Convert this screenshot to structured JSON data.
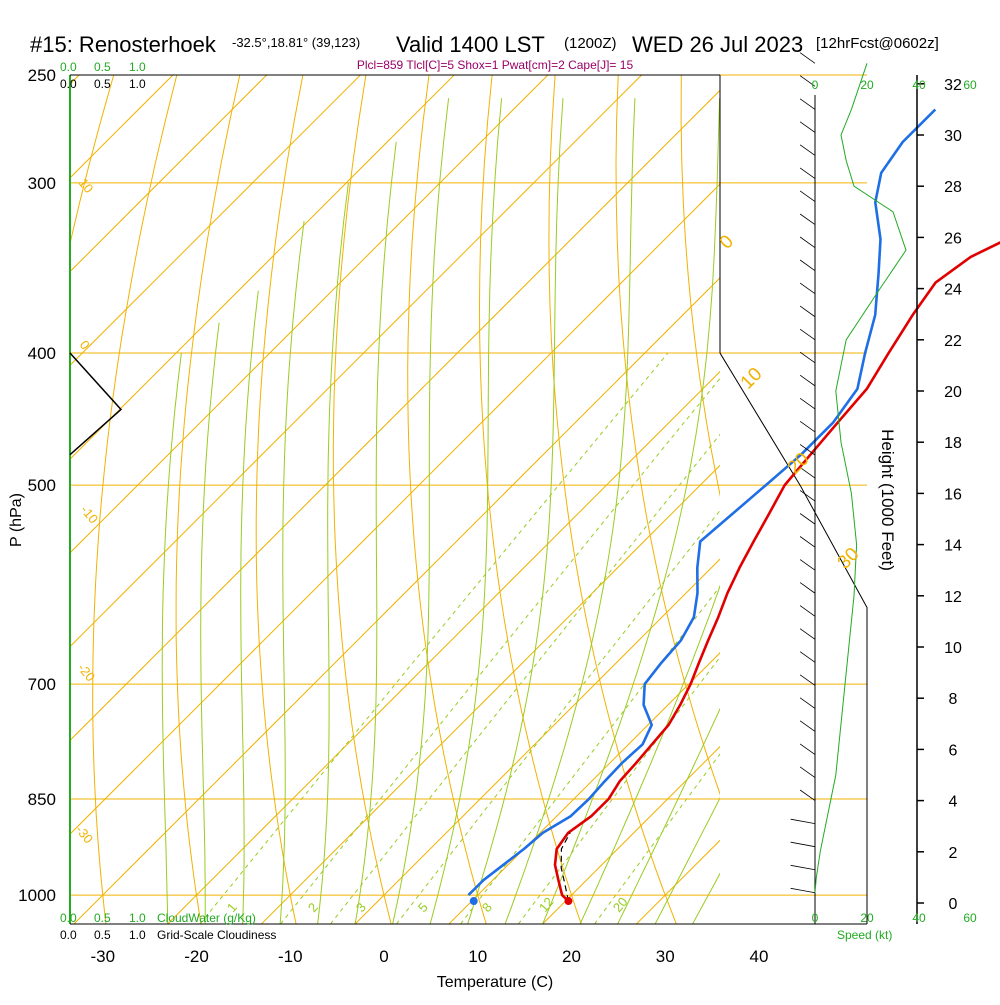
{
  "header": {
    "station": "#15: Renosterhoek",
    "coords": "-32.5°,18.81° (39,123)",
    "valid": "Valid 1400 LST",
    "zulu": "(1200Z)",
    "date": "WED 26 Jul 2023",
    "forecast": "[12hrFcst@0602z]",
    "indices": "Plcl=859 Tlcl[C]=5 Shox=1 Pwat[cm]=2 Cape[J]= 15"
  },
  "colors": {
    "temperature": "#e00000",
    "dewpoint": "#1e6ee6",
    "isobar": "#f2b200",
    "dry_adiabat": "#f2b200",
    "moist_adiabat": "#99cc22",
    "mixing_ratio": "#99cc22",
    "green_text": "#22aa22",
    "indices_text": "#990066"
  },
  "axes": {
    "xlabel": "Temperature (C)",
    "ylabel": "P (hPa)",
    "right_label": "Height (1000 Feet)",
    "x_ticks": [
      "-30",
      "-20",
      "-10",
      "0",
      "10",
      "20",
      "30",
      "40"
    ],
    "p_ticks": [
      "250",
      "300",
      "400",
      "500",
      "700",
      "850",
      "1000"
    ],
    "height_ticks": [
      "0",
      "2",
      "4",
      "6",
      "8",
      "10",
      "12",
      "14",
      "16",
      "18",
      "20",
      "22",
      "24",
      "26",
      "28",
      "30",
      "32"
    ]
  },
  "side_scales": {
    "cloud_top_green": [
      "0.0",
      "0.5",
      "1.0"
    ],
    "cloud_top_black": [
      "0.0",
      "0.5",
      "1.0"
    ],
    "cloud_bottom_green": [
      "0.0",
      "0.5",
      "1.0"
    ],
    "cloud_bottom_black": [
      "0.0",
      "0.5",
      "1.0"
    ],
    "cloudwater_label": "CloudWater (g/Kg)",
    "cloudiness_label": "Grid-Scale Cloudiness",
    "speed_ticks": [
      "0",
      "20",
      "40",
      "60"
    ],
    "speed_label": "Speed (kt)"
  },
  "labels": {
    "dry_adiabat_left": [
      "10",
      "0",
      "-10",
      "-20",
      "-30"
    ],
    "dry_adiabat_right": [
      "0",
      "10",
      "20",
      "30"
    ],
    "mixing_ratio": [
      "1",
      "2",
      "3",
      "5",
      "8",
      "12",
      "20"
    ]
  },
  "chart_data": {
    "type": "line",
    "title": "#15: Renosterhoek Valid 1400 LST (1200Z) WED 26 Jul 2023",
    "xlabel": "Temperature (C)",
    "ylabel": "P (hPa)",
    "xlim": [
      -35,
      44
    ],
    "ylim": [
      1050,
      250
    ],
    "yscale": "log",
    "series": [
      {
        "key": "temperature",
        "points": [
          [
            20.3,
            1010
          ],
          [
            19,
            1000
          ],
          [
            17,
            975
          ],
          [
            15,
            950
          ],
          [
            13.5,
            925
          ],
          [
            13,
            900
          ],
          [
            13.7,
            875
          ],
          [
            13.7,
            850
          ],
          [
            13,
            825
          ],
          [
            12.8,
            800
          ],
          [
            12.5,
            775
          ],
          [
            12.2,
            750
          ],
          [
            11.3,
            725
          ],
          [
            10.2,
            700
          ],
          [
            8.8,
            675
          ],
          [
            7.4,
            650
          ],
          [
            6,
            625
          ],
          [
            4.4,
            600
          ],
          [
            3,
            575
          ],
          [
            1.7,
            550
          ],
          [
            0.4,
            525
          ],
          [
            -1,
            500
          ],
          [
            -1.5,
            475
          ],
          [
            -2,
            450
          ],
          [
            -2.5,
            425
          ],
          [
            -4,
            400
          ],
          [
            -5.5,
            375
          ],
          [
            -6.5,
            355
          ],
          [
            -5.5,
            340
          ],
          [
            -2.5,
            325
          ],
          [
            -1,
            300
          ],
          [
            0.5,
            275
          ],
          [
            2,
            265
          ]
        ]
      },
      {
        "key": "dewpoint",
        "points": [
          [
            9,
            1000
          ],
          [
            9,
            975
          ],
          [
            9.5,
            950
          ],
          [
            10,
            925
          ],
          [
            10.3,
            900
          ],
          [
            11.5,
            875
          ],
          [
            11.6,
            850
          ],
          [
            11.4,
            825
          ],
          [
            11.3,
            800
          ],
          [
            11.5,
            775
          ],
          [
            10.4,
            750
          ],
          [
            7.4,
            725
          ],
          [
            5.3,
            700
          ],
          [
            4.8,
            675
          ],
          [
            4.5,
            650
          ],
          [
            3.4,
            625
          ],
          [
            1.2,
            600
          ],
          [
            -1.5,
            575
          ],
          [
            -4,
            550
          ],
          [
            -3.5,
            525
          ],
          [
            -3,
            500
          ],
          [
            -2.5,
            475
          ],
          [
            -2.5,
            450
          ],
          [
            -3.5,
            425
          ],
          [
            -6.5,
            400
          ],
          [
            -9.5,
            375
          ],
          [
            -13.5,
            350
          ],
          [
            -17,
            330
          ],
          [
            -21.5,
            310
          ],
          [
            -24,
            295
          ],
          [
            -25,
            280
          ],
          [
            -25,
            265
          ]
        ]
      }
    ],
    "surface_points": [
      {
        "key": "temperature",
        "value": 20.3
      },
      {
        "key": "dewpoint",
        "value": 10.2
      }
    ],
    "parcel": [
      [
        20.3,
        1010
      ],
      [
        18,
        980
      ],
      [
        16,
        955
      ],
      [
        14,
        925
      ],
      [
        13.2,
        900
      ]
    ],
    "lcl_pressure": 859,
    "tlcl": 5,
    "height_axis_kft": [
      0,
      33
    ],
    "wind_speed_profile_kt": [
      [
        0,
        0.4
      ],
      [
        0.5,
        1
      ],
      [
        2,
        2
      ],
      [
        4,
        3
      ],
      [
        6,
        4
      ],
      [
        8,
        5
      ],
      [
        9,
        6
      ],
      [
        11,
        8
      ],
      [
        13,
        10
      ],
      [
        15,
        12
      ],
      [
        16,
        14
      ],
      [
        14,
        16
      ],
      [
        10,
        18
      ],
      [
        8,
        20
      ],
      [
        12,
        22
      ],
      [
        25,
        24
      ],
      [
        35,
        25.5
      ],
      [
        30,
        27
      ],
      [
        15,
        28
      ],
      [
        12,
        29
      ],
      [
        10,
        30
      ],
      [
        14,
        31
      ],
      [
        20,
        32.8
      ]
    ]
  }
}
